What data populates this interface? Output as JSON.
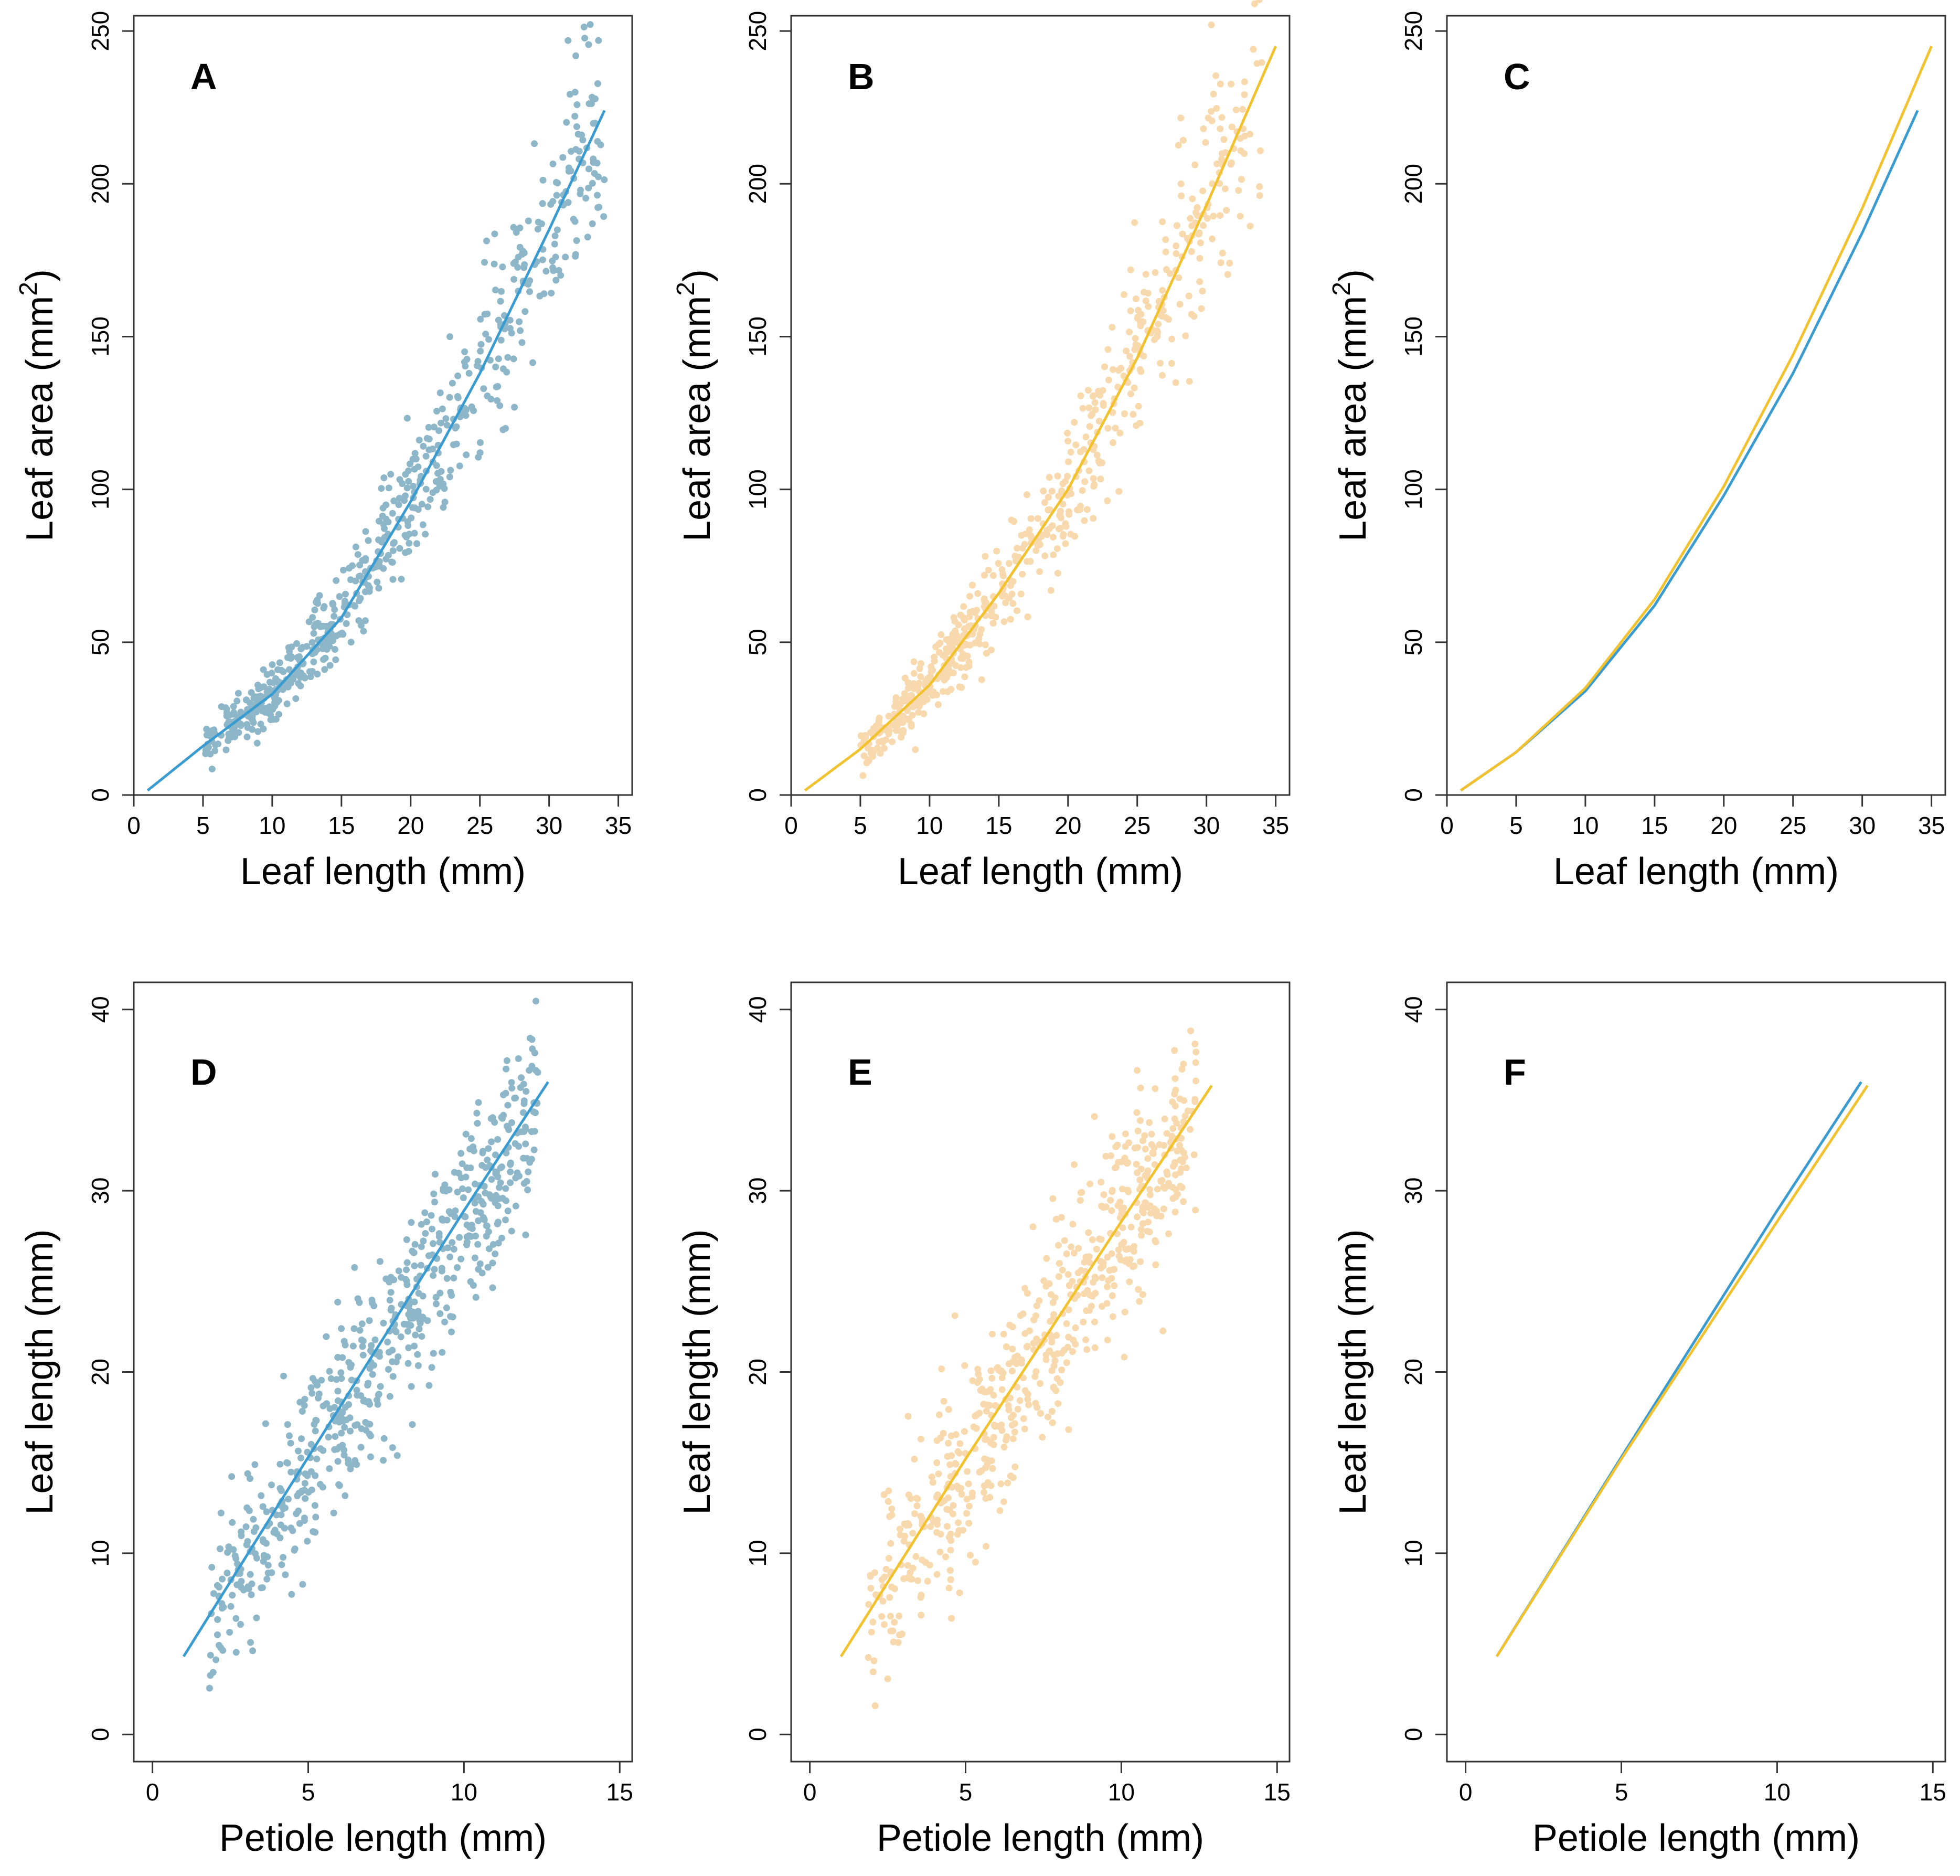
{
  "figure": {
    "colors": {
      "blue_line": "#3a9bd0",
      "blue_points": "#8db6c8",
      "yellow_line": "#f2c12e",
      "yellow_points": "#f8d9ad"
    }
  },
  "chart_data": [
    {
      "panel": "A",
      "type": "scatter",
      "xlabel": "Leaf length (mm)",
      "ylabel": "Leaf area (mm",
      "ylabel_sup": "2",
      "ylabel_end": ")",
      "xlim": [
        0,
        36
      ],
      "ylim": [
        0,
        255
      ],
      "xticks": [
        0,
        5,
        10,
        15,
        20,
        25,
        30,
        35
      ],
      "yticks": [
        0,
        50,
        100,
        150,
        200,
        250
      ],
      "points_series": "blue",
      "fit_lines": [
        {
          "color": "blue",
          "x": [
            1,
            5,
            10,
            15,
            20,
            25,
            30,
            34
          ],
          "y": [
            1.5,
            16,
            33,
            58,
            96,
            138,
            185,
            224
          ]
        }
      ]
    },
    {
      "panel": "B",
      "type": "scatter",
      "xlabel": "Leaf length (mm)",
      "ylabel": "Leaf area (mm",
      "ylabel_sup": "2",
      "ylabel_end": ")",
      "xlim": [
        0,
        36
      ],
      "ylim": [
        0,
        255
      ],
      "xticks": [
        0,
        5,
        10,
        15,
        20,
        25,
        30,
        35
      ],
      "yticks": [
        0,
        50,
        100,
        150,
        200,
        250
      ],
      "points_series": "yellow",
      "fit_lines": [
        {
          "color": "yellow",
          "x": [
            1,
            5,
            10,
            15,
            20,
            25,
            30,
            35
          ],
          "y": [
            1.5,
            15,
            36,
            66,
            100,
            143,
            193,
            245
          ]
        }
      ]
    },
    {
      "panel": "C",
      "type": "line",
      "xlabel": "Leaf length (mm)",
      "ylabel": "Leaf area (mm",
      "ylabel_sup": "2",
      "ylabel_end": ")",
      "xlim": [
        0,
        36
      ],
      "ylim": [
        0,
        255
      ],
      "xticks": [
        0,
        5,
        10,
        15,
        20,
        25,
        30,
        35
      ],
      "yticks": [
        0,
        50,
        100,
        150,
        200,
        250
      ],
      "points_series": null,
      "fit_lines": [
        {
          "color": "blue",
          "x": [
            1,
            5,
            10,
            15,
            20,
            25,
            30,
            34
          ],
          "y": [
            1.5,
            14,
            34,
            62,
            98,
            138,
            184,
            224
          ]
        },
        {
          "color": "yellow",
          "x": [
            1,
            5,
            10,
            15,
            20,
            25,
            30,
            35
          ],
          "y": [
            1.5,
            14,
            35,
            64,
            101,
            144,
            192,
            245
          ]
        }
      ]
    },
    {
      "panel": "D",
      "type": "scatter",
      "xlabel": "Petiole length (mm)",
      "ylabel": "Leaf length (mm)",
      "ylabel_sup": "",
      "ylabel_end": "",
      "xlim": [
        -0.6,
        15.4
      ],
      "ylim": [
        -1.5,
        41.5
      ],
      "xticks": [
        0,
        5,
        10,
        15
      ],
      "yticks": [
        0,
        10,
        20,
        30,
        40
      ],
      "points_series": "blue",
      "fit_lines": [
        {
          "color": "blue",
          "x": [
            1,
            5,
            10,
            12.7
          ],
          "y": [
            4.3,
            15.3,
            28.9,
            36
          ]
        }
      ]
    },
    {
      "panel": "E",
      "type": "scatter",
      "xlabel": "Petiole length (mm)",
      "ylabel": "Leaf length (mm)",
      "ylabel_sup": "",
      "ylabel_end": "",
      "xlim": [
        -0.6,
        15.4
      ],
      "ylim": [
        -1.5,
        41.5
      ],
      "xticks": [
        0,
        5,
        10,
        15
      ],
      "yticks": [
        0,
        10,
        20,
        30,
        40
      ],
      "points_series": "yellow",
      "fit_lines": [
        {
          "color": "yellow",
          "x": [
            1,
            5,
            10,
            12.9
          ],
          "y": [
            4.3,
            15.2,
            28.3,
            35.8
          ]
        }
      ]
    },
    {
      "panel": "F",
      "type": "line",
      "xlabel": "Petiole length (mm)",
      "ylabel": "Leaf length (mm)",
      "ylabel_sup": "",
      "ylabel_end": "",
      "xlim": [
        -0.6,
        15.4
      ],
      "ylim": [
        -1.5,
        41.5
      ],
      "xticks": [
        0,
        5,
        10,
        15
      ],
      "yticks": [
        0,
        10,
        20,
        30,
        40
      ],
      "points_series": null,
      "fit_lines": [
        {
          "color": "blue",
          "x": [
            1,
            5,
            10,
            12.7
          ],
          "y": [
            4.3,
            15.3,
            28.9,
            36
          ]
        },
        {
          "color": "yellow",
          "x": [
            1,
            5,
            10,
            12.9
          ],
          "y": [
            4.3,
            15.2,
            28.3,
            35.8
          ]
        }
      ]
    }
  ]
}
